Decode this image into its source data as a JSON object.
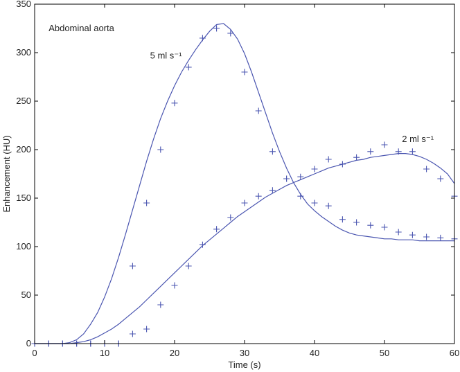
{
  "chart_data": {
    "type": "line",
    "title": "",
    "xlabel": "Time (s)",
    "ylabel": "Enhancement (HU)",
    "xlim": [
      0,
      60
    ],
    "ylim": [
      0,
      350
    ],
    "xticks": [
      0,
      10,
      20,
      30,
      40,
      50,
      60
    ],
    "yticks": [
      0,
      50,
      100,
      150,
      200,
      250,
      300,
      350
    ],
    "grid": false,
    "color": "#4a55b0",
    "annotations": [
      {
        "text": "Abdominal aorta",
        "x": 2,
        "y": 322
      },
      {
        "text": "5 ml s⁻¹",
        "x": 16.5,
        "y": 294
      },
      {
        "text": "2 ml s⁻¹",
        "x": 52.5,
        "y": 208
      }
    ],
    "series": [
      {
        "name": "5 ml s⁻¹",
        "model": {
          "x": [
            0,
            4,
            5,
            6,
            7,
            8,
            9,
            10,
            11,
            12,
            13,
            14,
            15,
            16,
            17,
            18,
            19,
            20,
            21,
            22,
            23,
            24,
            25,
            26,
            27,
            28,
            29,
            30,
            31,
            32,
            33,
            34,
            35,
            36,
            37,
            38,
            39,
            40,
            41,
            42,
            43,
            44,
            45,
            46,
            47,
            48,
            49,
            50,
            51,
            52,
            53,
            54,
            55,
            56,
            57,
            58,
            59,
            60
          ],
          "y": [
            0,
            0,
            1,
            4,
            10,
            20,
            32,
            48,
            67,
            89,
            113,
            138,
            163,
            188,
            211,
            232,
            250,
            266,
            280,
            292,
            303,
            313,
            322,
            329,
            330,
            324,
            314,
            299,
            280,
            259,
            238,
            217,
            198,
            181,
            166,
            154,
            144,
            137,
            131,
            126,
            121,
            117,
            114,
            112,
            111,
            110,
            109,
            108,
            108,
            107,
            107,
            107,
            106,
            106,
            106,
            106,
            106,
            106
          ]
        },
        "measured": {
          "x": [
            0,
            2,
            4,
            6,
            8,
            10,
            12,
            14,
            16,
            18,
            20,
            22,
            24,
            26,
            28,
            30,
            32,
            34,
            36,
            38,
            40,
            42,
            44,
            46,
            48,
            50,
            52,
            54,
            56,
            58,
            60
          ],
          "y": [
            0,
            0,
            0,
            0,
            0,
            0,
            0,
            80,
            145,
            200,
            248,
            285,
            315,
            325,
            320,
            280,
            240,
            198,
            170,
            152,
            145,
            142,
            128,
            125,
            122,
            120,
            115,
            112,
            110,
            109,
            108
          ]
        }
      },
      {
        "name": "2 ml s⁻¹",
        "model": {
          "x": [
            0,
            5,
            6,
            7,
            8,
            9,
            10,
            11,
            12,
            13,
            14,
            15,
            16,
            17,
            18,
            19,
            20,
            21,
            22,
            23,
            24,
            25,
            26,
            27,
            28,
            29,
            30,
            31,
            32,
            33,
            34,
            35,
            36,
            37,
            38,
            39,
            40,
            41,
            42,
            43,
            44,
            45,
            46,
            47,
            48,
            49,
            50,
            51,
            52,
            53,
            54,
            55,
            56,
            57,
            58,
            59,
            60
          ],
          "y": [
            0,
            0,
            1,
            2,
            4,
            7,
            11,
            15,
            20,
            26,
            32,
            38,
            45,
            52,
            59,
            66,
            73,
            80,
            87,
            94,
            101,
            107,
            113,
            119,
            125,
            131,
            136,
            141,
            146,
            151,
            155,
            159,
            163,
            166,
            169,
            172,
            175,
            178,
            181,
            183,
            185,
            187,
            189,
            190,
            192,
            193,
            194,
            195,
            196,
            196,
            195,
            193,
            190,
            186,
            181,
            175,
            165
          ]
        },
        "measured": {
          "x": [
            0,
            2,
            4,
            6,
            8,
            10,
            12,
            14,
            16,
            18,
            20,
            22,
            24,
            26,
            28,
            30,
            32,
            34,
            36,
            38,
            40,
            42,
            44,
            46,
            48,
            50,
            52,
            54,
            56,
            58,
            60
          ],
          "y": [
            0,
            0,
            0,
            0,
            0,
            0,
            0,
            10,
            15,
            40,
            60,
            80,
            102,
            118,
            130,
            145,
            152,
            158,
            170,
            172,
            180,
            190,
            185,
            192,
            198,
            205,
            198,
            198,
            180,
            170,
            152
          ]
        }
      }
    ]
  }
}
